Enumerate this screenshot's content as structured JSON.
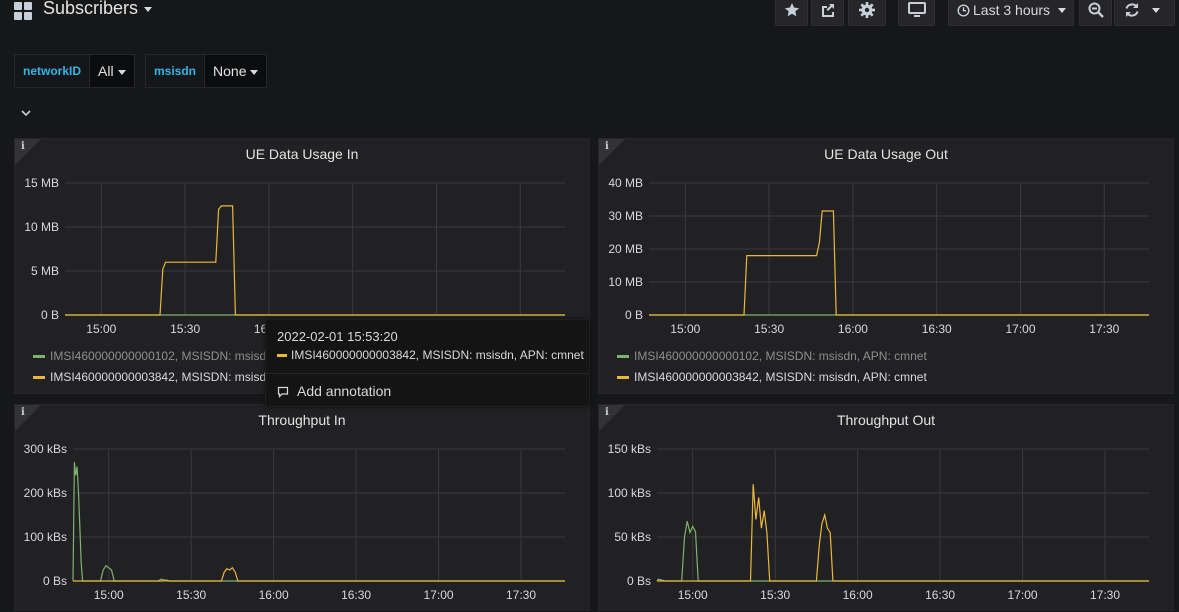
{
  "header": {
    "title": "Subscribers",
    "time_range": "Last 3 hours"
  },
  "variables": [
    {
      "label": "networkID",
      "value": "All"
    },
    {
      "label": "msisdn",
      "value": "None"
    }
  ],
  "colors": {
    "green": "#7eb26d",
    "yellow": "#eab839"
  },
  "tooltip": {
    "time": "2022-02-01 15:53:20",
    "series": "IMSI460000000003842, MSISDN: msisdn, APN: cmnet",
    "action": "Add annotation"
  },
  "panels": {
    "p0": {
      "title": "UE Data Usage In",
      "legend": [
        {
          "name": "IMSI460000000000102, MSISDN: msisdn, APN: cmnet",
          "color": "#7eb26d"
        },
        {
          "name": "IMSI460000000003842, MSISDN: msisdn, APN: cmnet",
          "color": "#eab839"
        }
      ]
    },
    "p1": {
      "title": "UE Data Usage Out",
      "legend": [
        {
          "name": "IMSI460000000000102, MSISDN: msisdn, APN: cmnet",
          "color": "#7eb26d"
        },
        {
          "name": "IMSI460000000003842, MSISDN: msisdn, APN: cmnet",
          "color": "#eab839"
        }
      ]
    },
    "p2": {
      "title": "Throughput In"
    },
    "p3": {
      "title": "Throughput Out"
    }
  },
  "chart_data": [
    {
      "type": "line",
      "title": "UE Data Usage In",
      "x_ticks": [
        "15:00",
        "15:30",
        "16:00",
        "16:30",
        "17:00",
        "17:30"
      ],
      "y_ticks": [
        "0 B",
        "5 MB",
        "10 MB",
        "15 MB"
      ],
      "ylim": [
        0,
        15
      ],
      "y_unit": "MB",
      "series": [
        {
          "name": "IMSI460000000000102, MSISDN: msisdn, APN: cmnet",
          "color": "#7eb26d",
          "points": [
            [
              "14:47",
              0
            ],
            [
              "17:46",
              0
            ]
          ]
        },
        {
          "name": "IMSI460000000003842, MSISDN: msisdn, APN: cmnet",
          "color": "#eab839",
          "points": [
            [
              "14:47",
              0
            ],
            [
              "15:21",
              0
            ],
            [
              "15:22",
              5.2
            ],
            [
              "15:23",
              6
            ],
            [
              "15:41",
              6
            ],
            [
              "15:42",
              12
            ],
            [
              "15:43",
              12.4
            ],
            [
              "15:47",
              12.4
            ],
            [
              "15:48",
              0
            ],
            [
              "17:46",
              0
            ]
          ]
        }
      ],
      "legend": "bottom"
    },
    {
      "type": "line",
      "title": "UE Data Usage Out",
      "x_ticks": [
        "15:00",
        "15:30",
        "16:00",
        "16:30",
        "17:00",
        "17:30"
      ],
      "y_ticks": [
        "0 B",
        "10 MB",
        "20 MB",
        "30 MB",
        "40 MB"
      ],
      "ylim": [
        0,
        40
      ],
      "y_unit": "MB",
      "series": [
        {
          "name": "IMSI460000000000102, MSISDN: msisdn, APN: cmnet",
          "color": "#7eb26d",
          "points": [
            [
              "14:47",
              0
            ],
            [
              "17:46",
              0
            ]
          ]
        },
        {
          "name": "IMSI460000000003842, MSISDN: msisdn, APN: cmnet",
          "color": "#eab839",
          "points": [
            [
              "14:47",
              0
            ],
            [
              "15:21",
              0
            ],
            [
              "15:22",
              18
            ],
            [
              "15:47",
              18
            ],
            [
              "15:48",
              22
            ],
            [
              "15:49",
              31.5
            ],
            [
              "15:53",
              31.5
            ],
            [
              "15:54",
              0
            ],
            [
              "17:46",
              0
            ]
          ]
        }
      ],
      "legend": "bottom"
    },
    {
      "type": "line",
      "title": "Throughput In",
      "x_ticks": [
        "15:00",
        "15:30",
        "16:00",
        "16:30",
        "17:00",
        "17:30"
      ],
      "y_ticks": [
        "0 Bs",
        "100 kBs",
        "200 kBs",
        "300 kBs"
      ],
      "ylim": [
        0,
        300
      ],
      "y_unit": "kBs",
      "series": [
        {
          "name": "IMSI460000000000102, MSISDN: msisdn, APN: cmnet",
          "color": "#7eb26d",
          "points": [
            [
              "14:47",
              0
            ],
            [
              "14:47:30",
              270
            ],
            [
              "14:48",
              240
            ],
            [
              "14:48:30",
              260
            ],
            [
              "14:49",
              200
            ],
            [
              "14:49:30",
              120
            ],
            [
              "14:50",
              40
            ],
            [
              "14:50:30",
              0
            ],
            [
              "14:57",
              0
            ],
            [
              "14:58",
              25
            ],
            [
              "14:59",
              35
            ],
            [
              "15:00",
              30
            ],
            [
              "15:01",
              25
            ],
            [
              "15:02",
              0
            ],
            [
              "15:18",
              0
            ],
            [
              "15:19",
              4
            ],
            [
              "15:20",
              3
            ],
            [
              "15:21",
              0
            ],
            [
              "17:46",
              0
            ]
          ]
        },
        {
          "name": "IMSI460000000003842, MSISDN: msisdn, APN: cmnet",
          "color": "#eab839",
          "points": [
            [
              "14:47",
              0
            ],
            [
              "15:20",
              0
            ],
            [
              "15:21",
              2
            ],
            [
              "15:22",
              0
            ],
            [
              "15:41",
              0
            ],
            [
              "15:42",
              20
            ],
            [
              "15:43",
              28
            ],
            [
              "15:44",
              25
            ],
            [
              "15:45",
              30
            ],
            [
              "15:46",
              20
            ],
            [
              "15:47",
              0
            ],
            [
              "17:46",
              0
            ]
          ]
        }
      ]
    },
    {
      "type": "line",
      "title": "Throughput Out",
      "x_ticks": [
        "15:00",
        "15:30",
        "16:00",
        "16:30",
        "17:00",
        "17:30"
      ],
      "y_ticks": [
        "0 Bs",
        "50 kBs",
        "100 kBs",
        "150 kBs"
      ],
      "ylim": [
        0,
        150
      ],
      "y_unit": "kBs",
      "series": [
        {
          "name": "IMSI460000000000102, MSISDN: msisdn, APN: cmnet",
          "color": "#7eb26d",
          "points": [
            [
              "14:47",
              0
            ],
            [
              "14:47:30",
              2
            ],
            [
              "14:50",
              0
            ],
            [
              "14:56",
              0
            ],
            [
              "14:57",
              50
            ],
            [
              "14:58",
              68
            ],
            [
              "14:59",
              55
            ],
            [
              "15:00",
              62
            ],
            [
              "15:01",
              56
            ],
            [
              "15:02",
              0
            ],
            [
              "17:46",
              0
            ]
          ]
        },
        {
          "name": "IMSI460000000003842, MSISDN: msisdn, APN: cmnet",
          "color": "#eab839",
          "points": [
            [
              "14:47",
              0
            ],
            [
              "15:21",
              0
            ],
            [
              "15:22",
              110
            ],
            [
              "15:23",
              70
            ],
            [
              "15:24",
              95
            ],
            [
              "15:25",
              60
            ],
            [
              "15:26",
              80
            ],
            [
              "15:27",
              55
            ],
            [
              "15:28",
              0
            ],
            [
              "15:45",
              0
            ],
            [
              "15:46",
              40
            ],
            [
              "15:47",
              65
            ],
            [
              "15:48",
              75
            ],
            [
              "15:49",
              60
            ],
            [
              "15:50",
              55
            ],
            [
              "15:51",
              0
            ],
            [
              "17:46",
              0
            ]
          ]
        }
      ]
    }
  ]
}
